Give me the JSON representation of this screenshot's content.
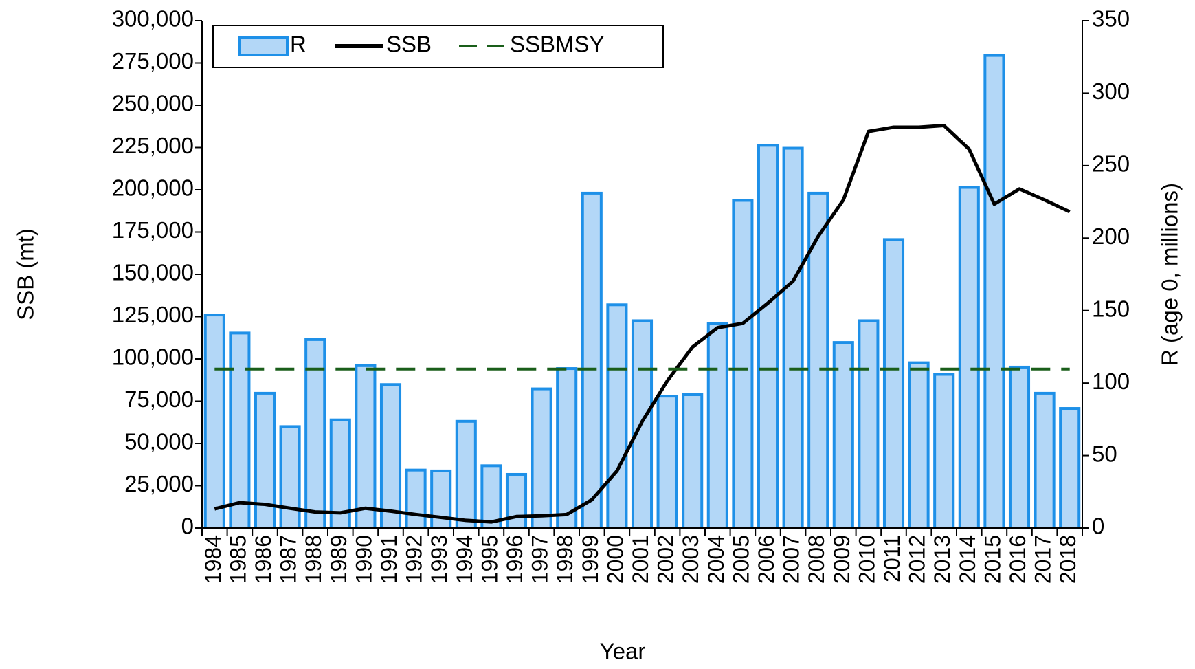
{
  "chart_data": {
    "type": "bar_line",
    "x_label": "Year",
    "y_label": "SSB (mt)",
    "y2_label": "R (age 0, millions)",
    "categories": [
      "1984",
      "1985",
      "1986",
      "1987",
      "1988",
      "1989",
      "1990",
      "1991",
      "1992",
      "1993",
      "1994",
      "1995",
      "1996",
      "1997",
      "1998",
      "1999",
      "2000",
      "2001",
      "2002",
      "2003",
      "2004",
      "2005",
      "2006",
      "2007",
      "2008",
      "2009",
      "2010",
      "2011",
      "2012",
      "2013",
      "2014",
      "2015",
      "2016",
      "2017",
      "2018"
    ],
    "series": [
      {
        "name": "R",
        "type": "bar",
        "axis": "y2",
        "color": "#b3d7f7",
        "edge_color": "#1e90e8",
        "values": [
          147,
          134.5,
          93,
          70,
          130,
          74.6,
          112,
          99,
          40,
          39.4,
          73.6,
          43,
          37,
          96,
          110,
          231,
          154,
          143,
          91,
          92,
          141,
          226,
          264,
          262,
          231,
          128,
          143,
          199,
          114,
          106,
          235,
          326,
          111,
          93,
          82.5
        ]
      },
      {
        "name": "SSB",
        "type": "line",
        "color": "#000000",
        "dash": false,
        "values": [
          11300,
          15000,
          14000,
          11700,
          9500,
          9000,
          11700,
          10000,
          8000,
          6300,
          4500,
          3600,
          6800,
          7200,
          8000,
          16700,
          33800,
          63000,
          87000,
          107000,
          118500,
          121000,
          133000,
          146000,
          172500,
          194000,
          234500,
          237000,
          237000,
          238000,
          224000,
          191500,
          200500,
          194000,
          187000
        ]
      },
      {
        "name": "SSBMSY",
        "type": "line",
        "color": "#1a5e1a",
        "dash": true,
        "values": [
          94000,
          94000,
          94000,
          94000,
          94000,
          94000,
          94000,
          94000,
          94000,
          94000,
          94000,
          94000,
          94000,
          94000,
          94000,
          94000,
          94000,
          94000,
          94000,
          94000,
          94000,
          94000,
          94000,
          94000,
          94000,
          94000,
          94000,
          94000,
          94000,
          94000,
          94000,
          94000,
          94000,
          94000,
          94000
        ]
      }
    ],
    "ylim": [
      0,
      300000
    ],
    "yticks": [
      0,
      {
        "value": 25000,
        "label": "25,000"
      },
      {
        "value": 50000,
        "label": "50,000"
      },
      {
        "value": 75000,
        "label": "75,000"
      },
      {
        "value": 100000,
        "label": "100,000"
      },
      {
        "value": 125000,
        "label": "125,000"
      },
      {
        "value": 150000,
        "label": "150,000"
      },
      {
        "value": 175000,
        "label": "175,000"
      },
      {
        "value": 200000,
        "label": "200,000"
      },
      {
        "value": 225000,
        "label": "225,000"
      },
      {
        "value": 250000,
        "label": "250,000"
      },
      {
        "value": 275000,
        "label": "275,000"
      },
      {
        "value": 300000,
        "label": "300,000"
      }
    ],
    "y2lim": [
      0,
      350
    ],
    "y2ticks": [
      0,
      50,
      100,
      150,
      200,
      250,
      300,
      350
    ],
    "grid": false,
    "legend": "upper-left"
  }
}
